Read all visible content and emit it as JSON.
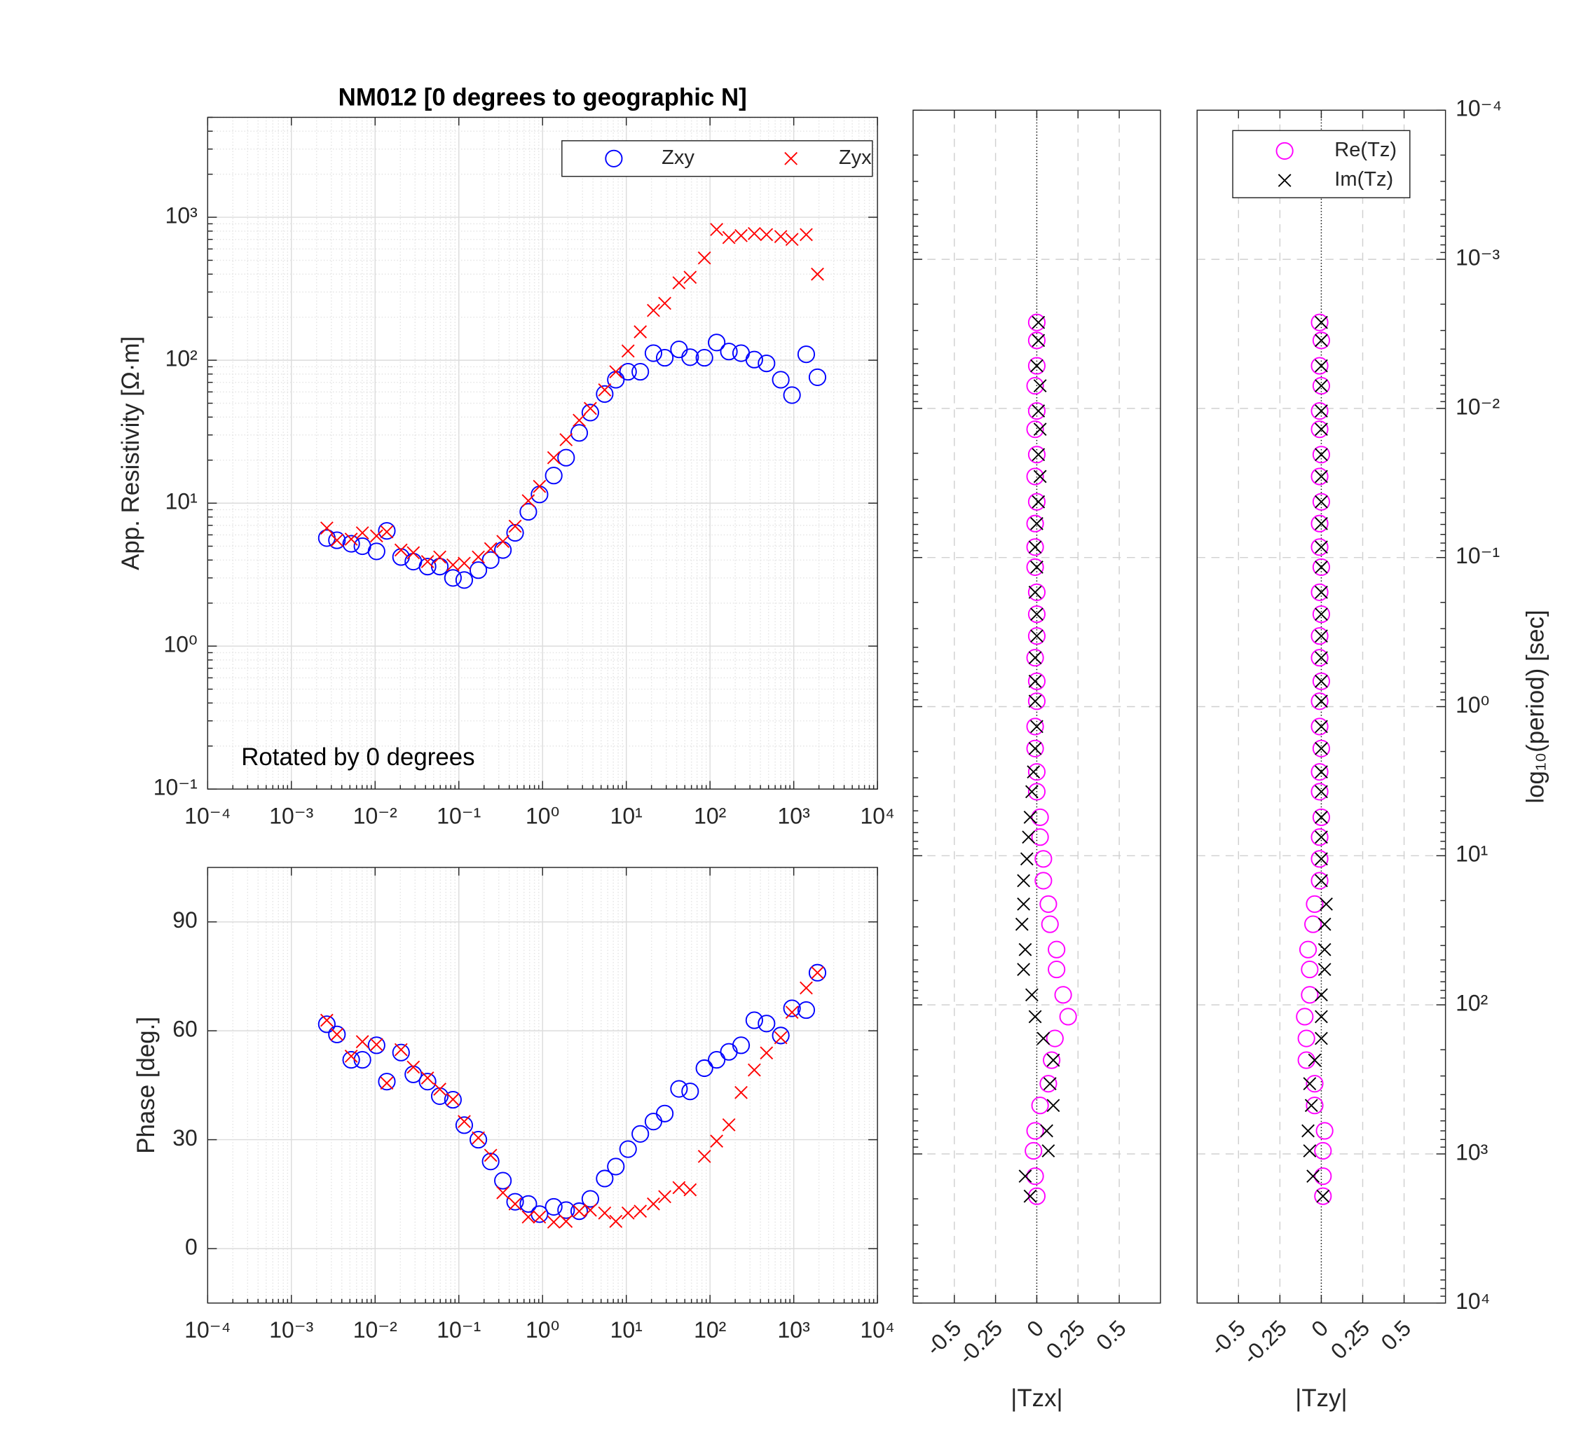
{
  "chart_data": [
    {
      "type": "scatter",
      "title": "NM012 [0 degrees to geographic N]",
      "annotation": "Rotated by 0 degrees",
      "y_label": "App. Resistivity [Ω·m]",
      "x_log": true,
      "y_log": true,
      "grid": true,
      "minor_grid": true,
      "legend": "top-right",
      "legend_layout": "horizontal",
      "x": [
        0.00265,
        0.0035,
        0.00518,
        0.00705,
        0.0104,
        0.0138,
        0.0204,
        0.0286,
        0.0423,
        0.0592,
        0.0851,
        0.116,
        0.171,
        0.24,
        0.336,
        0.47,
        0.676,
        0.92,
        1.36,
        1.91,
        2.74,
        3.72,
        5.52,
        7.5,
        10.5,
        14.7,
        21.1,
        28.8,
        42.6,
        57.9,
        85.7,
        120,
        168,
        235,
        338,
        473,
        700,
        953,
        1410,
        1920
      ],
      "xlim": [
        0.0001,
        10000
      ],
      "xticks": [
        {
          "value": 0.0001,
          "label": "10⁻⁴"
        },
        {
          "value": 0.001,
          "label": "10⁻³"
        },
        {
          "value": 0.01,
          "label": "10⁻²"
        },
        {
          "value": 0.1,
          "label": "10⁻¹"
        },
        {
          "value": 1,
          "label": "10⁰"
        },
        {
          "value": 10,
          "label": "10¹"
        },
        {
          "value": 100,
          "label": "10²"
        },
        {
          "value": 1000,
          "label": "10³"
        },
        {
          "value": 10000,
          "label": "10⁴"
        }
      ],
      "ylim": [
        0.1,
        5000
      ],
      "yticks": [
        {
          "value": 0.1,
          "label": "10⁻¹"
        },
        {
          "value": 1,
          "label": "10⁰"
        },
        {
          "value": 10,
          "label": "10¹"
        },
        {
          "value": 100,
          "label": "10²"
        },
        {
          "value": 1000,
          "label": "10³"
        }
      ],
      "series": [
        {
          "name": "Zxy",
          "marker": "circle",
          "color": "#0000ff",
          "values": [
            5.7,
            5.5,
            5.2,
            5.0,
            4.6,
            6.4,
            4.2,
            3.9,
            3.6,
            3.6,
            3.0,
            2.9,
            3.4,
            4.0,
            4.7,
            6.2,
            8.7,
            11.5,
            15.6,
            20.8,
            31,
            43,
            58,
            73,
            83,
            83,
            112,
            104,
            119,
            105,
            104,
            133,
            115,
            112,
            101,
            95,
            73,
            57,
            110,
            76
          ]
        },
        {
          "name": "Zyx",
          "marker": "x",
          "color": "#ff0000",
          "values": [
            6.7,
            5.5,
            5.6,
            6.2,
            5.9,
            6.3,
            4.7,
            4.5,
            3.9,
            4.2,
            3.7,
            3.8,
            4.2,
            4.8,
            5.4,
            6.9,
            10.4,
            13.1,
            20.8,
            27.8,
            38,
            46,
            62,
            83,
            116,
            158,
            223,
            250,
            348,
            380,
            519,
            821,
            721,
            744,
            769,
            756,
            733,
            700,
            756,
            400
          ]
        }
      ]
    },
    {
      "type": "scatter",
      "y_label": "Phase [deg.]",
      "x_log": true,
      "y_log": false,
      "grid": true,
      "minor_grid": true,
      "x": [
        0.00265,
        0.0035,
        0.00518,
        0.00705,
        0.0104,
        0.0138,
        0.0204,
        0.0286,
        0.0423,
        0.0592,
        0.0851,
        0.116,
        0.171,
        0.24,
        0.336,
        0.47,
        0.676,
        0.92,
        1.36,
        1.91,
        2.74,
        3.72,
        5.52,
        7.5,
        10.5,
        14.7,
        21.1,
        28.8,
        42.6,
        57.9,
        85.7,
        120,
        168,
        235,
        338,
        473,
        700,
        953,
        1410,
        1920
      ],
      "xlim": [
        0.0001,
        10000
      ],
      "xticks": [
        {
          "value": 0.0001,
          "label": "10⁻⁴"
        },
        {
          "value": 0.001,
          "label": "10⁻³"
        },
        {
          "value": 0.01,
          "label": "10⁻²"
        },
        {
          "value": 0.1,
          "label": "10⁻¹"
        },
        {
          "value": 1,
          "label": "10⁰"
        },
        {
          "value": 10,
          "label": "10¹"
        },
        {
          "value": 100,
          "label": "10²"
        },
        {
          "value": 1000,
          "label": "10³"
        },
        {
          "value": 10000,
          "label": "10⁴"
        }
      ],
      "ylim": [
        -15,
        105
      ],
      "yticks": [
        0,
        30,
        60,
        90
      ],
      "series": [
        {
          "marker": "circle",
          "color": "#0000ff",
          "values": [
            61.8,
            59,
            52,
            52,
            56,
            46,
            54,
            48,
            46,
            42,
            41,
            34,
            30,
            24,
            18.7,
            12.9,
            12.3,
            9.5,
            11.5,
            10.6,
            10.3,
            13.7,
            19.3,
            22.6,
            27.4,
            31.6,
            35,
            37.2,
            44,
            43.3,
            49.7,
            52,
            54.2,
            56,
            62.9,
            62,
            58.7,
            66.2,
            65.7,
            76
          ]
        },
        {
          "marker": "x",
          "color": "#ff0000",
          "values": [
            62.9,
            59,
            53,
            57,
            56.2,
            45.6,
            54.8,
            50,
            47,
            43.9,
            41.1,
            35,
            30.5,
            25.7,
            15.4,
            12.3,
            8.7,
            8.7,
            7.3,
            7.5,
            10.3,
            10.6,
            9.8,
            7.5,
            9.8,
            10.3,
            12.3,
            14.3,
            16.8,
            16.2,
            25.4,
            29.6,
            34.1,
            43,
            49.2,
            53.9,
            58.1,
            65.1,
            71.8,
            76
          ]
        }
      ]
    },
    {
      "type": "scatter",
      "x_label": "|Tzx|",
      "y_log": true,
      "y_reverse": true,
      "grid": true,
      "zero_line": true,
      "y": [
        0.00265,
        0.0035,
        0.00518,
        0.00705,
        0.0104,
        0.0138,
        0.0204,
        0.0286,
        0.0423,
        0.0592,
        0.0851,
        0.116,
        0.171,
        0.24,
        0.336,
        0.47,
        0.676,
        0.92,
        1.36,
        1.91,
        2.74,
        3.72,
        5.52,
        7.5,
        10.5,
        14.7,
        21.1,
        28.8,
        42.6,
        57.9,
        85.7,
        120,
        168,
        235,
        338,
        473,
        700,
        953,
        1410,
        1920
      ],
      "xlim": [
        -0.75,
        0.75
      ],
      "xticks": [
        -0.5,
        -0.25,
        0,
        0.25,
        0.5
      ],
      "ylim": [
        0.0001,
        10000
      ],
      "yticks": [
        0.0001,
        0.001,
        0.01,
        0.1,
        1,
        10,
        100,
        1000,
        10000
      ],
      "series": [
        {
          "marker": "circle",
          "color": "#ff00ff",
          "values": [
            0,
            0,
            0,
            -0.01,
            0,
            -0.01,
            0,
            -0.01,
            0,
            -0.01,
            -0.01,
            -0.01,
            0,
            0,
            0,
            -0.01,
            0,
            0,
            -0.01,
            -0.01,
            0,
            0,
            0.02,
            0.02,
            0.04,
            0.04,
            0.07,
            0.08,
            0.12,
            0.12,
            0.16,
            0.19,
            0.11,
            0.09,
            0.07,
            0.02,
            -0.01,
            -0.02,
            -0.01,
            0
          ]
        },
        {
          "marker": "x",
          "color": "#000000",
          "values": [
            0.01,
            0.01,
            0,
            0.02,
            0.01,
            0.02,
            0.01,
            0.02,
            0.01,
            0,
            -0.01,
            0,
            -0.01,
            0,
            0,
            -0.01,
            -0.01,
            -0.01,
            0,
            -0.01,
            -0.02,
            -0.03,
            -0.04,
            -0.05,
            -0.06,
            -0.08,
            -0.08,
            -0.09,
            -0.07,
            -0.08,
            -0.03,
            -0.01,
            0.04,
            0.1,
            0.08,
            0.1,
            0.06,
            0.07,
            -0.07,
            -0.04
          ]
        }
      ]
    },
    {
      "type": "scatter",
      "x_label": "|Tzy|",
      "y_label": "log₁₀(period) [sec]",
      "y_log": true,
      "y_reverse": true,
      "grid": true,
      "zero_line": true,
      "legend": "top-right",
      "legend_layout": "vertical",
      "y": [
        0.00265,
        0.0035,
        0.00518,
        0.00705,
        0.0104,
        0.0138,
        0.0204,
        0.0286,
        0.0423,
        0.0592,
        0.0851,
        0.116,
        0.171,
        0.24,
        0.336,
        0.47,
        0.676,
        0.92,
        1.36,
        1.91,
        2.74,
        3.72,
        5.52,
        7.5,
        10.5,
        14.7,
        21.1,
        28.8,
        42.6,
        57.9,
        85.7,
        120,
        168,
        235,
        338,
        473,
        700,
        953,
        1410,
        1920
      ],
      "xlim": [
        -0.75,
        0.75
      ],
      "xticks": [
        -0.5,
        -0.25,
        0,
        0.25,
        0.5
      ],
      "ylim": [
        0.0001,
        10000
      ],
      "yticks": [
        {
          "value": 0.0001,
          "label": "10⁻⁴"
        },
        {
          "value": 0.001,
          "label": "10⁻³"
        },
        {
          "value": 0.01,
          "label": "10⁻²"
        },
        {
          "value": 0.1,
          "label": "10⁻¹"
        },
        {
          "value": 1,
          "label": "10⁰"
        },
        {
          "value": 10,
          "label": "10¹"
        },
        {
          "value": 100,
          "label": "10²"
        },
        {
          "value": 1000,
          "label": "10³"
        },
        {
          "value": 10000,
          "label": "10⁴"
        }
      ],
      "series": [
        {
          "name": "Re(Tz)",
          "marker": "circle",
          "color": "#ff00ff",
          "values": [
            -0.01,
            0,
            -0.01,
            0,
            -0.01,
            -0.01,
            0,
            -0.01,
            0,
            -0.01,
            -0.01,
            0,
            -0.01,
            0,
            -0.01,
            -0.01,
            0,
            -0.01,
            -0.01,
            0,
            -0.01,
            -0.01,
            0,
            -0.01,
            -0.01,
            -0.01,
            -0.04,
            -0.05,
            -0.08,
            -0.07,
            -0.07,
            -0.1,
            -0.09,
            -0.09,
            -0.04,
            -0.04,
            0.02,
            0.01,
            0.01,
            0.01
          ]
        },
        {
          "name": "Im(Tz)",
          "marker": "x",
          "color": "#000000",
          "values": [
            0,
            0,
            0,
            0,
            0,
            0,
            0,
            0,
            0,
            0,
            0,
            0,
            0,
            0,
            0,
            0,
            0,
            0,
            0,
            0,
            0,
            0,
            0,
            0,
            0,
            0,
            0.03,
            0.02,
            0.02,
            0.02,
            0,
            0,
            0,
            -0.04,
            -0.07,
            -0.06,
            -0.08,
            -0.07,
            -0.05,
            0.01
          ]
        }
      ]
    }
  ]
}
